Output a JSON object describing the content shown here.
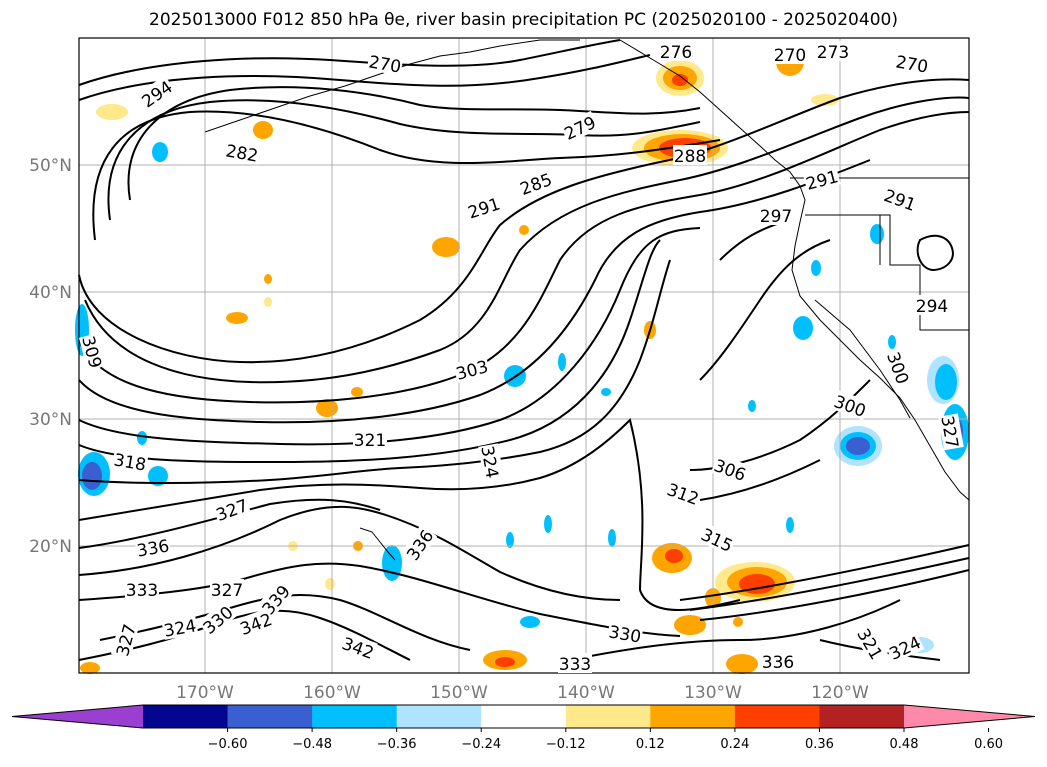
{
  "title": "2025013000 F012 850 hPa θe, river basin precipitation PC (2025020100 - 2025020400)",
  "map": {
    "lat_labels": [
      "50°N",
      "40°N",
      "30°N",
      "20°N"
    ],
    "lon_labels": [
      "170°W",
      "160°W",
      "150°W",
      "140°W",
      "130°W",
      "120°W"
    ],
    "contour_labels": [
      {
        "text": "294",
        "name": "contour-label-294-a"
      },
      {
        "text": "282",
        "name": "contour-label-282"
      },
      {
        "text": "270",
        "name": "contour-label-270-a"
      },
      {
        "text": "276",
        "name": "contour-label-276"
      },
      {
        "text": "270",
        "name": "contour-label-270-b"
      },
      {
        "text": "273",
        "name": "contour-label-273"
      },
      {
        "text": "270",
        "name": "contour-label-270-c"
      },
      {
        "text": "279",
        "name": "contour-label-279"
      },
      {
        "text": "288",
        "name": "contour-label-288"
      },
      {
        "text": "285",
        "name": "contour-label-285"
      },
      {
        "text": "291",
        "name": "contour-label-291-a"
      },
      {
        "text": "291",
        "name": "contour-label-291-b"
      },
      {
        "text": "297",
        "name": "contour-label-297"
      },
      {
        "text": "291",
        "name": "contour-label-291-c"
      },
      {
        "text": "294",
        "name": "contour-label-294-b"
      },
      {
        "text": "309",
        "name": "contour-label-309"
      },
      {
        "text": "303",
        "name": "contour-label-303"
      },
      {
        "text": "300",
        "name": "contour-label-300-a"
      },
      {
        "text": "300",
        "name": "contour-label-300-b"
      },
      {
        "text": "321",
        "name": "contour-label-321-a"
      },
      {
        "text": "318",
        "name": "contour-label-318"
      },
      {
        "text": "324",
        "name": "contour-label-324-a"
      },
      {
        "text": "306",
        "name": "contour-label-306"
      },
      {
        "text": "312",
        "name": "contour-label-312"
      },
      {
        "text": "315",
        "name": "contour-label-315"
      },
      {
        "text": "327",
        "name": "contour-label-327-a"
      },
      {
        "text": "336",
        "name": "contour-label-336-a"
      },
      {
        "text": "336",
        "name": "contour-label-336-b"
      },
      {
        "text": "333",
        "name": "contour-label-333-a"
      },
      {
        "text": "327",
        "name": "contour-label-327-b"
      },
      {
        "text": "339",
        "name": "contour-label-339"
      },
      {
        "text": "330",
        "name": "contour-label-330-a"
      },
      {
        "text": "324",
        "name": "contour-label-324-b"
      },
      {
        "text": "342",
        "name": "contour-label-342-a"
      },
      {
        "text": "327",
        "name": "contour-label-327-c"
      },
      {
        "text": "342",
        "name": "contour-label-342-b"
      },
      {
        "text": "330",
        "name": "contour-label-330-b"
      },
      {
        "text": "333",
        "name": "contour-label-333-b"
      },
      {
        "text": "336",
        "name": "contour-label-336-c"
      },
      {
        "text": "321",
        "name": "contour-label-321-b"
      },
      {
        "text": "324",
        "name": "contour-label-324-c"
      },
      {
        "text": "327",
        "name": "contour-label-327-d"
      }
    ]
  },
  "colorbar": {
    "colors": [
      "#9b3fd1",
      "#05068f",
      "#3a5fd0",
      "#00bfff",
      "#afe3ff",
      "#ffffff",
      "#ffe98a",
      "#ffa500",
      "#ff3f00",
      "#b22222",
      "#ff89a8"
    ],
    "tick_labels": [
      "−0.60",
      "−0.48",
      "−0.36",
      "−0.24",
      "−0.12",
      "0.12",
      "0.24",
      "0.36",
      "0.48",
      "0.60"
    ]
  }
}
